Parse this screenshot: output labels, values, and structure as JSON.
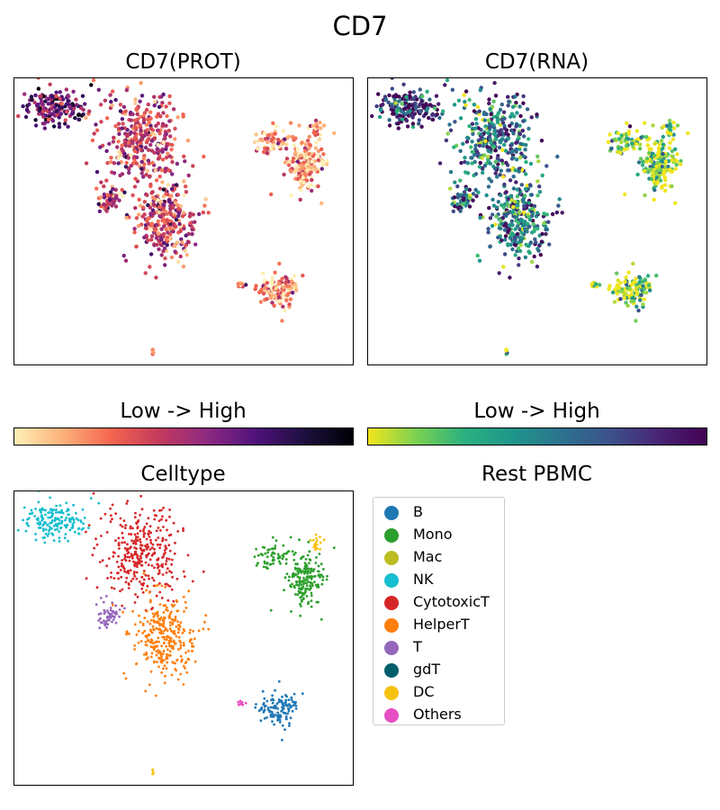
{
  "title": "CD7",
  "panels": {
    "prot": {
      "title": "CD7(PROT)"
    },
    "rna": {
      "title": "CD7(RNA)"
    },
    "celltype": {
      "title": "Celltype"
    },
    "legend_panel": {
      "title": "Rest PBMC"
    }
  },
  "colorbars": {
    "prot": {
      "label": "Low  ->  High",
      "colors": [
        "#fdf0b5",
        "#fcb07a",
        "#f4654f",
        "#c33a5d",
        "#8c2981",
        "#4f127b",
        "#1d0f3f",
        "#000004"
      ]
    },
    "rna": {
      "label": "Low  ->  High",
      "colors": [
        "#f1e51d",
        "#7ad151",
        "#2ab07f",
        "#1f968b",
        "#2c728e",
        "#3b528b",
        "#482575",
        "#440154"
      ]
    }
  },
  "chart_data": {
    "type": "scatter",
    "embedding": "UMAP",
    "legend": [
      {
        "name": "B",
        "color": "#1f77b4"
      },
      {
        "name": "Mono",
        "color": "#2ca02c"
      },
      {
        "name": "Mac",
        "color": "#bcbd22"
      },
      {
        "name": "NK",
        "color": "#17becf"
      },
      {
        "name": "CytotoxicT",
        "color": "#d62728"
      },
      {
        "name": "HelperT",
        "color": "#ff7f0e"
      },
      {
        "name": "T",
        "color": "#9467bd"
      },
      {
        "name": "gdT",
        "color": "#005f6b"
      },
      {
        "name": "DC",
        "color": "#f5c211"
      },
      {
        "name": "Others",
        "color": "#e64fc3"
      }
    ],
    "clusters": [
      {
        "celltype": "NK",
        "cx": 0.12,
        "cy": 0.1,
        "rx": 0.095,
        "ry": 0.06,
        "n": 170,
        "prot": 0.65,
        "rna": 0.85
      },
      {
        "celltype": "CytotoxicT",
        "cx": 0.37,
        "cy": 0.21,
        "rx": 0.12,
        "ry": 0.16,
        "n": 330,
        "prot": 0.42,
        "rna": 0.55
      },
      {
        "celltype": "T",
        "cx": 0.28,
        "cy": 0.42,
        "rx": 0.035,
        "ry": 0.04,
        "n": 55,
        "prot": 0.5,
        "rna": 0.6
      },
      {
        "celltype": "HelperT",
        "cx": 0.44,
        "cy": 0.5,
        "rx": 0.09,
        "ry": 0.15,
        "n": 300,
        "prot": 0.4,
        "rna": 0.5
      },
      {
        "celltype": "Mono",
        "cx": 0.86,
        "cy": 0.3,
        "rx": 0.06,
        "ry": 0.1,
        "n": 180,
        "prot": 0.15,
        "rna": 0.1
      },
      {
        "celltype": "Mono",
        "cx": 0.76,
        "cy": 0.22,
        "rx": 0.05,
        "ry": 0.05,
        "n": 60,
        "prot": 0.15,
        "rna": 0.1
      },
      {
        "celltype": "DC",
        "cx": 0.89,
        "cy": 0.18,
        "rx": 0.015,
        "ry": 0.03,
        "n": 18,
        "prot": 0.2,
        "rna": 0.1
      },
      {
        "celltype": "B",
        "cx": 0.78,
        "cy": 0.74,
        "rx": 0.06,
        "ry": 0.06,
        "n": 120,
        "prot": 0.22,
        "rna": 0.08
      },
      {
        "celltype": "Others",
        "cx": 0.675,
        "cy": 0.72,
        "rx": 0.02,
        "ry": 0.008,
        "n": 8,
        "prot": 0.3,
        "rna": 0.3
      },
      {
        "celltype": "DC",
        "cx": 0.41,
        "cy": 0.955,
        "rx": 0.006,
        "ry": 0.008,
        "n": 5,
        "prot": 0.4,
        "rna": 0.3
      }
    ]
  }
}
